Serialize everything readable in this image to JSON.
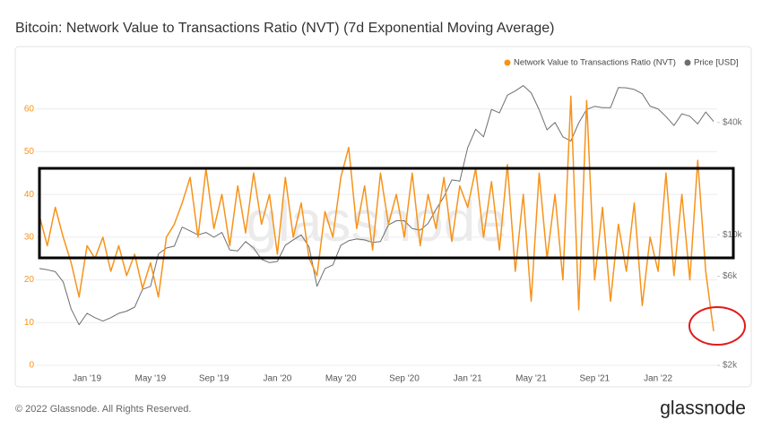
{
  "chart_data": {
    "type": "line",
    "title": "Bitcoin: Network Value to Transactions Ratio (NVT) (7d Exponential Moving Average)",
    "watermark": "glassnode",
    "footer": "© 2022 Glassnode. All Rights Reserved.",
    "logo": "glassnode",
    "categories": [
      null,
      null,
      null,
      null,
      null,
      null,
      "Jan '19",
      null,
      null,
      null,
      null,
      null,
      null,
      null,
      "May '19",
      null,
      null,
      null,
      null,
      null,
      null,
      null,
      "Sep '19",
      null,
      null,
      null,
      null,
      null,
      null,
      null,
      "Jan '20",
      null,
      null,
      null,
      null,
      null,
      null,
      null,
      "May '20",
      null,
      null,
      null,
      null,
      null,
      null,
      null,
      "Sep '20",
      null,
      null,
      null,
      null,
      null,
      null,
      null,
      "Jan '21",
      null,
      null,
      null,
      null,
      null,
      null,
      null,
      "May '21",
      null,
      null,
      null,
      null,
      null,
      null,
      null,
      "Sep '21",
      null,
      null,
      null,
      null,
      null,
      null,
      null,
      "Jan '22",
      null,
      null,
      null,
      null,
      null,
      null,
      null
    ],
    "series": [
      {
        "name": "Network Value to Transactions Ratio (NVT)",
        "color": "#f7931a",
        "axis": "y",
        "values": [
          35,
          28,
          37,
          30,
          24,
          16,
          28,
          25,
          30,
          22,
          28,
          21,
          26,
          18,
          24,
          16,
          30,
          33,
          38,
          44,
          30,
          46,
          32,
          40,
          28,
          42,
          31,
          45,
          33,
          40,
          26,
          44,
          30,
          38,
          25,
          21,
          36,
          30,
          44,
          51,
          32,
          42,
          27,
          45,
          33,
          40,
          30,
          45,
          28,
          40,
          32,
          44,
          29,
          42,
          37,
          46,
          30,
          43,
          27,
          47,
          22,
          40,
          15,
          45,
          25,
          40,
          20,
          63,
          13,
          62,
          20,
          37,
          15,
          33,
          22,
          38,
          14,
          30,
          22,
          45,
          21,
          40,
          20,
          48,
          22,
          8
        ]
      },
      {
        "name": "Price [USD]",
        "color": "#6e6e6e",
        "axis": "y2",
        "values": [
          6600,
          6500,
          6350,
          5600,
          4000,
          3300,
          3800,
          3600,
          3450,
          3600,
          3800,
          3900,
          4100,
          5100,
          5300,
          7900,
          8500,
          8700,
          11000,
          10500,
          10000,
          10300,
          9700,
          10300,
          8300,
          8200,
          9200,
          8500,
          7400,
          7100,
          7200,
          8800,
          9400,
          10000,
          8600,
          5300,
          6600,
          6900,
          8800,
          9300,
          9500,
          9400,
          9100,
          9200,
          11300,
          11900,
          11900,
          10800,
          10600,
          11500,
          13700,
          16000,
          19700,
          19400,
          29300,
          36800,
          33500,
          47000,
          45000,
          56000,
          59000,
          63000,
          57700,
          46800,
          36500,
          40000,
          33500,
          31800,
          39800,
          47000,
          48800,
          48000,
          48000,
          61500,
          61300,
          60100,
          57000,
          48900,
          47300,
          43000,
          38500,
          44500,
          43200,
          39300,
          45500,
          40500
        ]
      }
    ],
    "ylim": [
      0,
      70
    ],
    "yticks": [
      0,
      10,
      20,
      30,
      40,
      50,
      60
    ],
    "y2lim": [
      2000,
      80000
    ],
    "y2log": true,
    "y2ticks": [
      {
        "value": 2000,
        "label": "$2k"
      },
      {
        "value": 6000,
        "label": "$6k"
      },
      {
        "value": 10000,
        "label": "$10k"
      },
      {
        "value": 40000,
        "label": "$40k"
      }
    ],
    "grid": true,
    "legend": "top-right"
  }
}
